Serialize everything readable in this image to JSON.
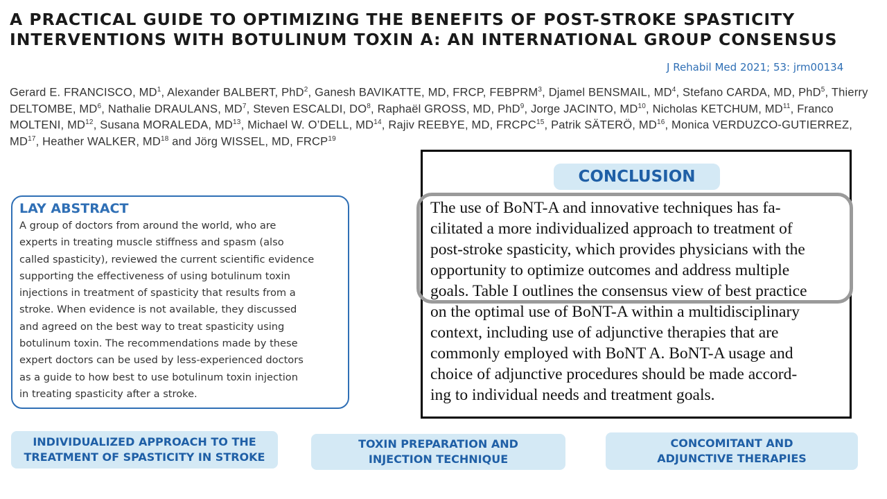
{
  "article": {
    "title": "A PRACTICAL GUIDE TO OPTIMIZING THE BENEFITS OF POST-STROKE SPASTICITY INTERVENTIONS WITH BOTULINUM TOXIN A: AN INTERNATIONAL GROUP CONSENSUS",
    "journal": "J Rehabil Med 2021; 53: jrm00134",
    "authors": [
      {
        "name": "Gerard E. FRANCISCO, MD",
        "sup": "1"
      },
      {
        "name": "Alexander BALBERT, PhD",
        "sup": "2"
      },
      {
        "name": "Ganesh BAVIKATTE, MD, FRCP, FEBPRM",
        "sup": "3"
      },
      {
        "name": "Djamel BENSMAIL, MD",
        "sup": "4"
      },
      {
        "name": "Stefano CARDA, MD, PhD",
        "sup": "5"
      },
      {
        "name": "Thierry DELTOMBE, MD",
        "sup": "6"
      },
      {
        "name": "Nathalie DRAULANS, MD",
        "sup": "7"
      },
      {
        "name": "Steven ESCALDI, DO",
        "sup": "8"
      },
      {
        "name": "Raphaël GROSS, MD, PhD",
        "sup": "9"
      },
      {
        "name": "Jorge JACINTO, MD",
        "sup": "10"
      },
      {
        "name": "Nicholas KETCHUM, MD",
        "sup": "11"
      },
      {
        "name": "Franco MOLTENI, MD",
        "sup": "12"
      },
      {
        "name": "Susana MORALEDA, MD",
        "sup": "13"
      },
      {
        "name": "Michael W. O’DELL, MD",
        "sup": "14"
      },
      {
        "name": "Rajiv REEBYE, MD, FRCPC",
        "sup": "15"
      },
      {
        "name": "Patrik SÄTERÖ, MD",
        "sup": "16"
      },
      {
        "name": "Monica VERDUZCO-GUTIERREZ, MD",
        "sup": "17"
      },
      {
        "name": "Heather WALKER, MD",
        "sup": "18"
      },
      {
        "name": "Jörg WISSEL, MD, FRCP",
        "sup": "19"
      }
    ]
  },
  "lay_abstract": {
    "title": "LAY ABSTRACT",
    "lines": [
      "A group of doctors from around the world, who are",
      "experts in treating muscle stiffness and spasm (also",
      "called spasticity), reviewed the current scientific evidence",
      "supporting the effectiveness of using botulinum toxin",
      "injections in treatment of spasticity that results from a",
      "stroke. When evidence is not available, they discussed",
      "and agreed on the best way to treat spasticity using",
      "botulinum toxin. The recommendations made by these",
      "expert doctors can be used by less-experienced doctors",
      "as a guide to how best to use botulinum toxin injection",
      "in treating spasticity after a stroke."
    ]
  },
  "conclusion": {
    "heading": "CONCLUSION",
    "lines": [
      "The use of BoNT-A and innovative techniques has fa-",
      "cilitated a more individualized approach to treatment of",
      "post-stroke spasticity, which provides physicians with the",
      "opportunity to optimize outcomes and address multiple",
      "goals. Table I outlines the consensus view of best practice",
      "on the optimal use of BoNT-A within a multidisciplinary",
      "context, including use of adjunctive therapies that are",
      "commonly employed with BoNT A. BoNT-A usage and",
      "choice of adjunctive procedures should be made accord-",
      "ing to individual needs and treatment goals."
    ]
  },
  "topics": [
    "INDIVIDUALIZED APPROACH TO THE TREATMENT OF SPASTICITY IN STROKE",
    "TOXIN PREPARATION AND INJECTION TECHNIQUE",
    "CONCOMITANT AND ADJUNCTIVE THERAPIES"
  ],
  "colors": {
    "accent": "#2f6fb5",
    "box_fill": "#d4e9f5",
    "highlight": "#9a9a9a"
  }
}
